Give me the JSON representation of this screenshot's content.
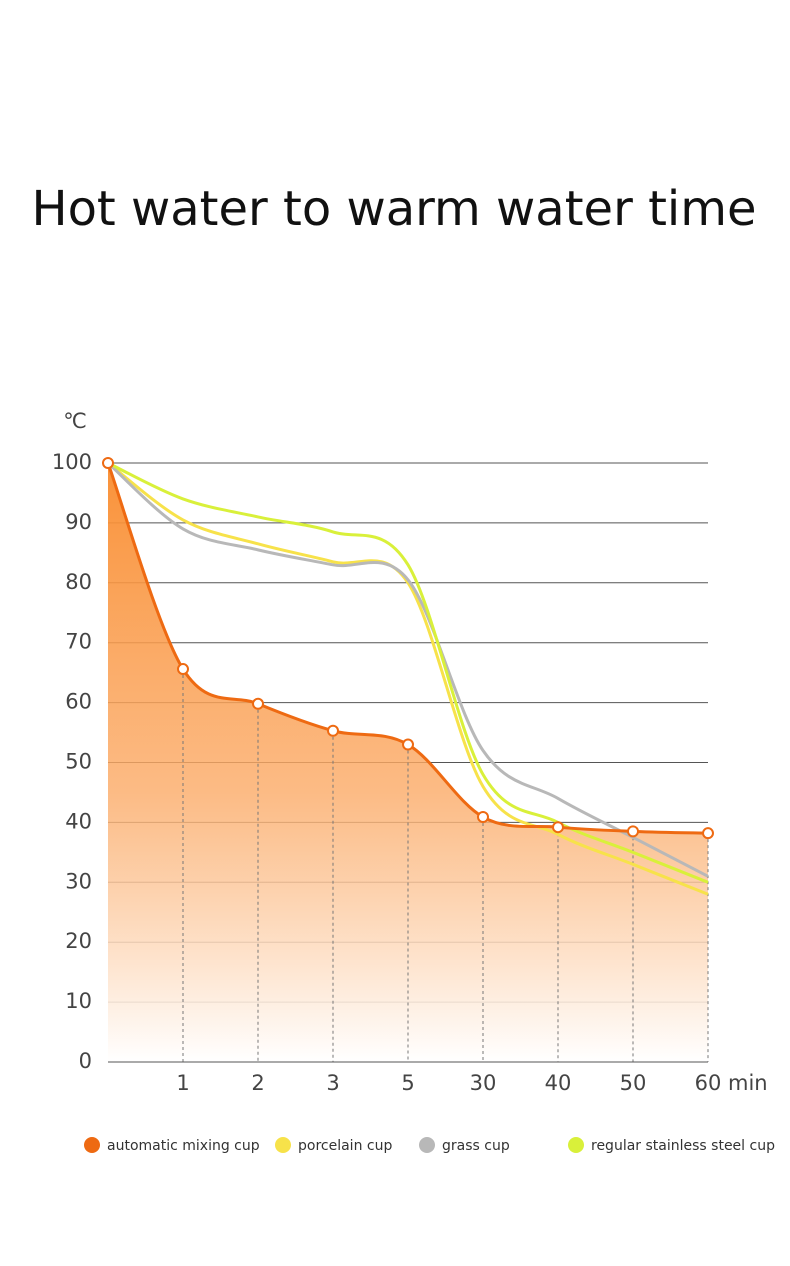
{
  "chart_data": {
    "type": "line",
    "title": "Hot water to warm water time",
    "y_label": "℃",
    "x_label": "min",
    "categories": [
      null,
      "1",
      "2",
      "3",
      "5",
      "30",
      "40",
      "50",
      "60"
    ],
    "ylim": [
      0,
      100
    ],
    "yticks": [
      0,
      10,
      20,
      30,
      40,
      50,
      60,
      70,
      80,
      90,
      100
    ],
    "grid": true,
    "series": [
      {
        "name": "automatic mixing cup",
        "color": "#ee6a12",
        "values": [
          100,
          65.6,
          59.8,
          55.3,
          53,
          40.9,
          39.2,
          38.5,
          38.2
        ]
      },
      {
        "name": "porcelain cup",
        "color": "#f7e24a",
        "values": [
          100,
          90.5,
          86.5,
          83.5,
          80,
          46,
          38,
          33,
          28
        ]
      },
      {
        "name": "grass cup",
        "color": "#b8b8b8",
        "values": [
          100,
          89,
          85.5,
          83,
          80.5,
          52,
          44,
          37.5,
          31
        ]
      },
      {
        "name": "regular stainless steel cup",
        "color": "#d9f03a",
        "values": [
          100,
          94,
          91,
          88.5,
          83,
          48,
          40,
          35,
          30
        ]
      }
    ]
  }
}
